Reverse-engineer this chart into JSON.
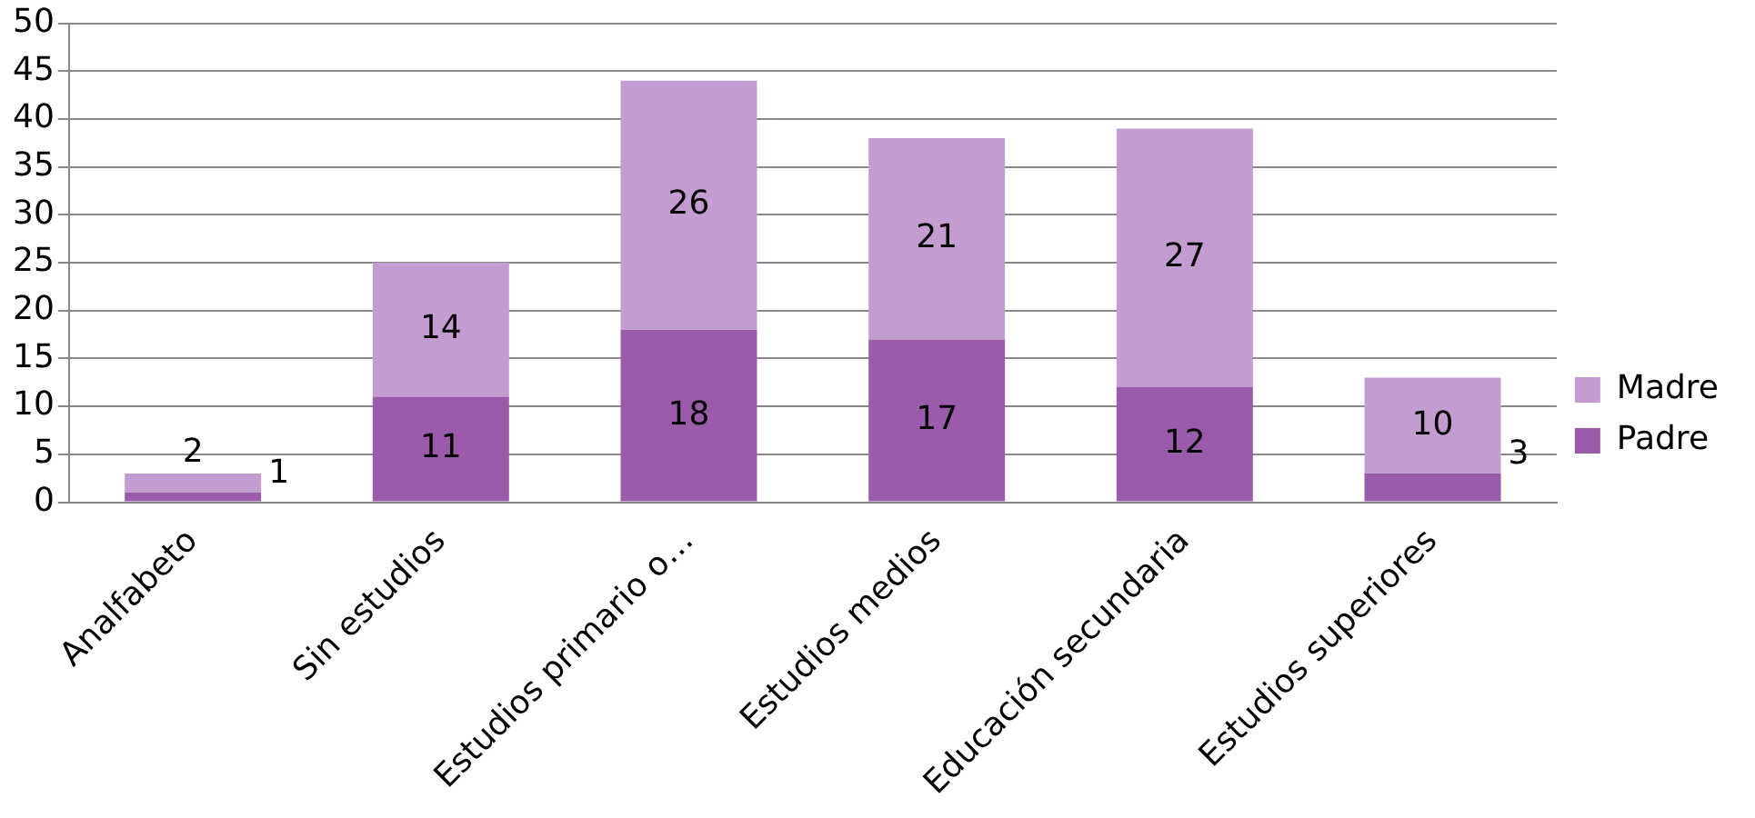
{
  "chart_data": {
    "type": "bar",
    "stacked": true,
    "categories": [
      "Analfabeto",
      "Sin estudios",
      "Estudios primario o…",
      "Estudios medios",
      "Educación secundaria",
      "Estudios superiores"
    ],
    "series": [
      {
        "name": "Padre",
        "color": "#9b5bab",
        "values": [
          1,
          11,
          18,
          17,
          12,
          3
        ]
      },
      {
        "name": "Madre",
        "color": "#c39dd1",
        "values": [
          2,
          14,
          26,
          21,
          27,
          10
        ]
      }
    ],
    "ylim": [
      0,
      50
    ],
    "yticks": [
      0,
      5,
      10,
      15,
      20,
      25,
      30,
      35,
      40,
      45,
      50
    ],
    "grid": "y",
    "legend": "right",
    "data_labels": true
  }
}
